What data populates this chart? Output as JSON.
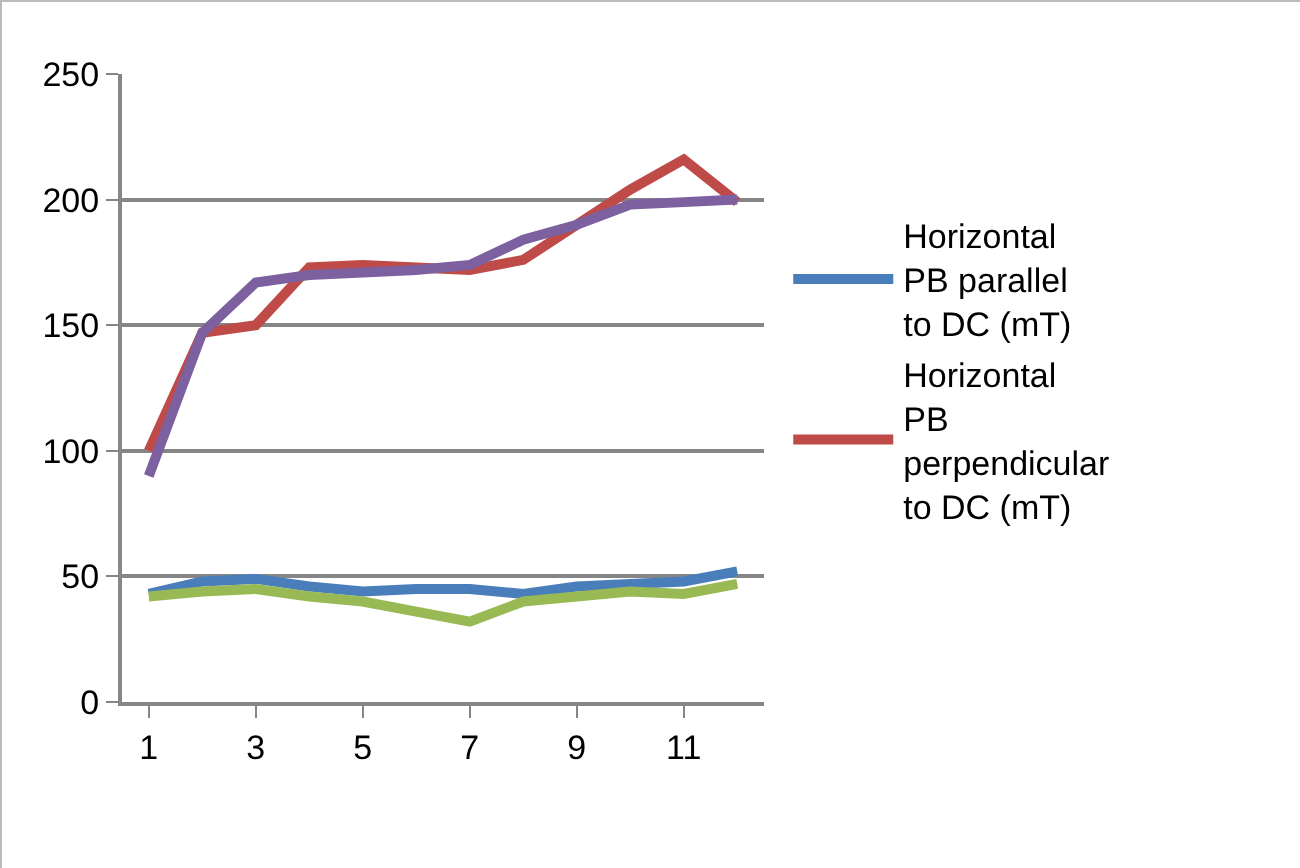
{
  "chart_data": {
    "type": "line",
    "categories": [
      "1",
      null,
      "3",
      null,
      "5",
      null,
      "7",
      null,
      "9",
      null,
      "11",
      null
    ],
    "series": [
      {
        "name": "Horizontal PB parallel to DC (mT)",
        "color": "#4a7ebb",
        "values": [
          43,
          48,
          49,
          46,
          44,
          45,
          45,
          43,
          46,
          47,
          48,
          52
        ]
      },
      {
        "name": "Horizontal PB perpendicular to DC (mT)",
        "color": "#be4b48",
        "values": [
          100,
          147,
          150,
          173,
          174,
          173,
          172,
          176,
          190,
          204,
          216,
          199
        ]
      },
      {
        "color": "#98b954",
        "values": [
          42,
          44,
          45,
          42,
          40,
          36,
          32,
          40,
          42,
          44,
          43,
          47
        ]
      },
      {
        "color": "#7d60a0",
        "values": [
          90,
          147,
          167,
          170,
          171,
          172,
          174,
          184,
          190,
          198,
          199,
          200
        ]
      }
    ],
    "ylim": [
      0,
      250
    ],
    "yticks": [
      0,
      50,
      100,
      150,
      200,
      250
    ],
    "grid": "y",
    "legend": "right",
    "marker": "none",
    "line_style": "solid"
  }
}
